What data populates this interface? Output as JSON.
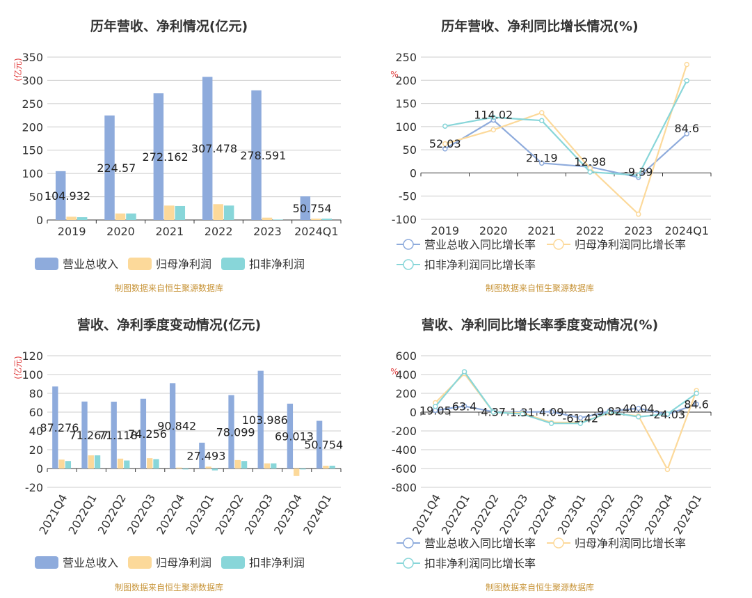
{
  "colors": {
    "revenue": "#8eabdc",
    "parent": "#fcd99a",
    "deducted": "#88d6d9",
    "grid": "#cccccc",
    "axis": "#333333",
    "title": "#333333",
    "unit": "#e04040",
    "source": "#c8953a",
    "label": "#222222"
  },
  "legends": {
    "bar": [
      "营业总收入",
      "归母净利润",
      "扣非净利润"
    ],
    "line": [
      "营业总收入同比增长率",
      "归母净利润同比增长率",
      "扣非净利润同比增长率"
    ]
  },
  "source_text": "制图数据来自恒生聚源数据库",
  "chart_data": [
    {
      "type": "bar",
      "title": "历年营收、净利情况(亿元)",
      "ylabel": "(亿元)",
      "ylim": [
        0,
        350
      ],
      "yticks": [
        "0",
        "50",
        "100",
        "150",
        "200",
        "250",
        "300",
        "350"
      ],
      "categories": [
        "2019",
        "2020",
        "2021",
        "2022",
        "2023",
        "2024Q1"
      ],
      "series": [
        {
          "name": "营业总收入",
          "values": [
            104.932,
            224.57,
            272.162,
            307.478,
            278.591,
            50.754
          ]
        },
        {
          "name": "归母净利润",
          "values": [
            7,
            14,
            31,
            34,
            5,
            3
          ]
        },
        {
          "name": "扣非净利润",
          "values": [
            6,
            14,
            30,
            31,
            1,
            3
          ]
        }
      ],
      "data_labels": [
        "104.932",
        "224.57",
        "272.162",
        "307.478",
        "278.591",
        "50.754"
      ]
    },
    {
      "type": "line",
      "title": "历年营收、净利同比增长情况(%)",
      "ylabel": "%",
      "ylim": [
        -100,
        250
      ],
      "yticks": [
        "-100",
        "-50",
        "0",
        "50",
        "100",
        "150",
        "200",
        "250"
      ],
      "categories": [
        "2019",
        "2020",
        "2021",
        "2022",
        "2023",
        "2024Q1"
      ],
      "series": [
        {
          "name": "营业总收入同比增长率",
          "values": [
            52.03,
            114.02,
            21.19,
            12.98,
            -9.39,
            84.6
          ]
        },
        {
          "name": "归母净利润同比增长率",
          "values": [
            63,
            93,
            130,
            10,
            -89,
            234
          ]
        },
        {
          "name": "扣非净利润同比增长率",
          "values": [
            101,
            120,
            113,
            2,
            -5,
            199
          ]
        }
      ],
      "data_labels": [
        "52.03",
        "114.02",
        "21.19",
        "12.98",
        "-9.39",
        "84.6"
      ]
    },
    {
      "type": "bar",
      "title": "营收、净利季度变动情况(亿元)",
      "ylabel": "(亿元)",
      "ylim": [
        -20,
        120
      ],
      "yticks": [
        "-20",
        "0",
        "20",
        "40",
        "60",
        "80",
        "100",
        "120"
      ],
      "categories": [
        "2021Q4",
        "2022Q1",
        "2022Q2",
        "2022Q3",
        "2022Q4",
        "2023Q1",
        "2023Q2",
        "2023Q3",
        "2023Q4",
        "2024Q1"
      ],
      "series": [
        {
          "name": "营业总收入",
          "values": [
            87.276,
            71.267,
            71.118,
            74.256,
            90.842,
            27.493,
            78.099,
            103.986,
            69.013,
            50.754
          ]
        },
        {
          "name": "归母净利润",
          "values": [
            9.5,
            14,
            10.5,
            11,
            1,
            2,
            9,
            5.5,
            -8,
            3
          ]
        },
        {
          "name": "扣非净利润",
          "values": [
            8,
            14,
            8.5,
            10,
            -1,
            -2,
            8,
            5.5,
            -1,
            3
          ]
        }
      ],
      "data_labels": [
        "87.276",
        "71.267",
        "71.118",
        "74.256",
        "90.842",
        "27.493",
        "78.099",
        "103.986",
        "69.013",
        "50.754"
      ]
    },
    {
      "type": "line",
      "title": "营收、净利同比增长率季度变动情况(%)",
      "ylabel": "%",
      "ylim": [
        -800,
        600
      ],
      "yticks": [
        "-800",
        "-600",
        "-400",
        "-200",
        "0",
        "200",
        "400",
        "600"
      ],
      "categories": [
        "2021Q4",
        "2022Q1",
        "2022Q2",
        "2022Q3",
        "2022Q4",
        "2023Q1",
        "2023Q2",
        "2023Q3",
        "2023Q4",
        "2024Q1"
      ],
      "series": [
        {
          "name": "营业总收入同比增长率",
          "values": [
            19.05,
            63.4,
            4.37,
            1.31,
            4.09,
            -61.42,
            9.82,
            40.04,
            -24.03,
            84.6
          ]
        },
        {
          "name": "归母净利润同比增长率",
          "values": [
            100,
            410,
            0,
            -10,
            -110,
            -110,
            -10,
            -40,
            -610,
            230
          ]
        },
        {
          "name": "扣非净利润同比增长率",
          "values": [
            60,
            430,
            0,
            -20,
            -120,
            -120,
            0,
            -50,
            -20,
            200
          ]
        }
      ],
      "data_labels": [
        "19.05",
        "63.4",
        "4.37",
        "1.31",
        "4.09",
        "-61.42",
        "9.82",
        "40.04",
        "-24.03",
        "84.6"
      ]
    }
  ]
}
